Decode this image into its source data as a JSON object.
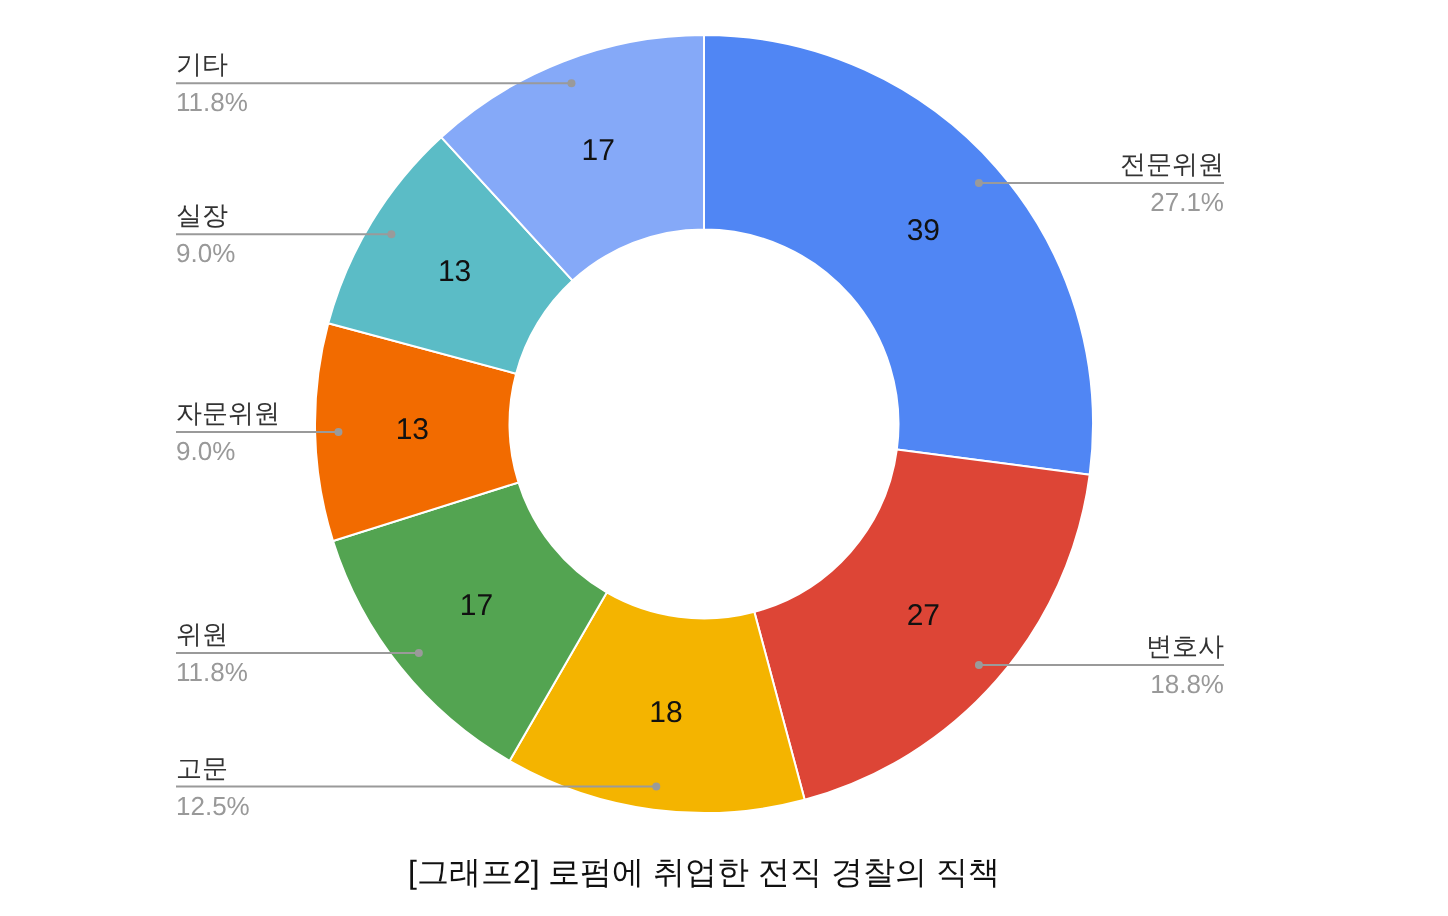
{
  "chart_data": {
    "type": "donut",
    "title": "[그래프2] 로펌에 취업한 전직 경찰의 직책",
    "categories": [
      "전문위원",
      "변호사",
      "고문",
      "위원",
      "자문위원",
      "실장",
      "기타"
    ],
    "values": [
      39,
      27,
      18,
      17,
      13,
      13,
      17
    ],
    "colors": [
      "#5086f4",
      "#dd4536",
      "#f4b400",
      "#53a451",
      "#f26b00",
      "#5bbcc6",
      "#85a9f8"
    ],
    "annotations": [
      "27.1%",
      "18.8%",
      "12.5%",
      "11.8%",
      "9.0%",
      "9.0%",
      "11.8%"
    ],
    "data_labels": true,
    "legend": false
  }
}
